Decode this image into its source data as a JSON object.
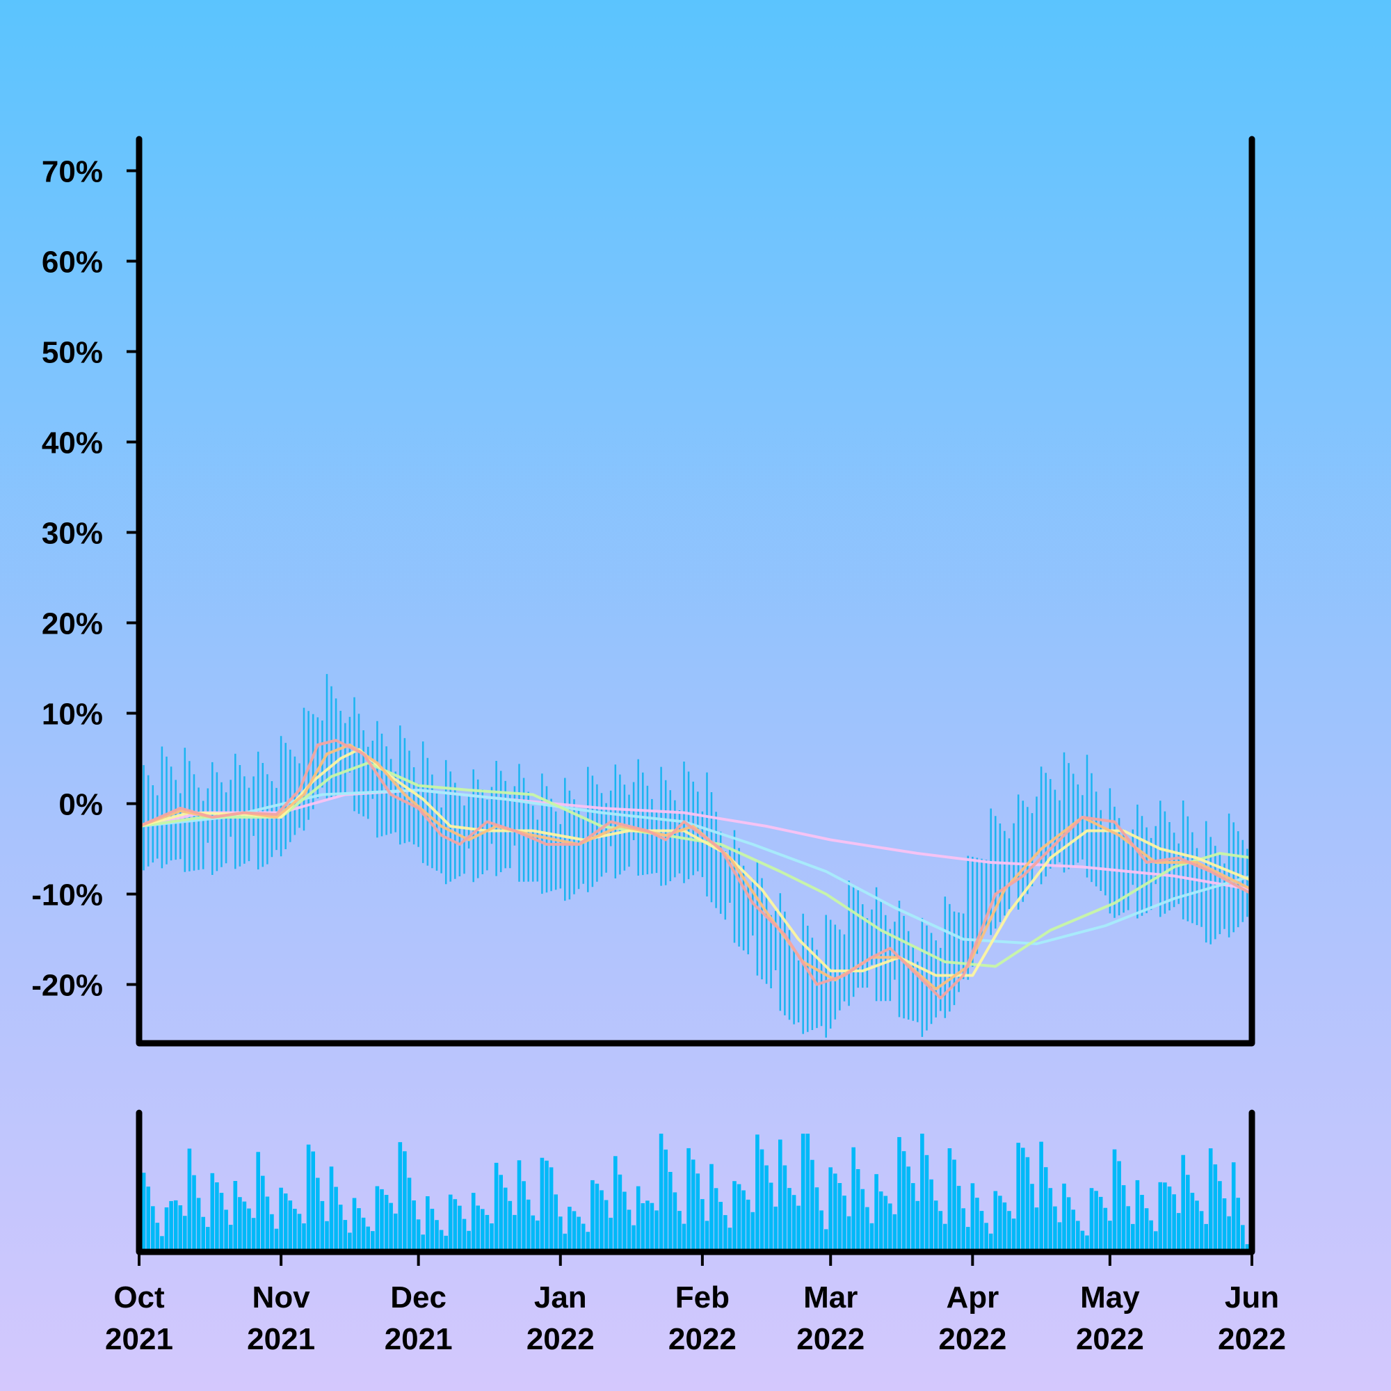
{
  "chart_data": {
    "type": "line",
    "title": "",
    "xlabel": "",
    "ylabel": "",
    "x_range": [
      "2021-10-01",
      "2022-06-01"
    ],
    "ylim": [
      -26.5,
      73.5
    ],
    "y_ticks": [
      70,
      60,
      50,
      40,
      30,
      20,
      10,
      0,
      -10,
      -20
    ],
    "y_tick_labels": [
      "70%",
      "60%",
      "50%",
      "40%",
      "30%",
      "20%",
      "10%",
      "0%",
      "-10%",
      "-20%"
    ],
    "x_ticks": [
      "2021-10-01",
      "2021-11-01",
      "2021-12-01",
      "2022-01-01",
      "2022-02-01",
      "2022-03-01",
      "2022-04-01",
      "2022-05-01",
      "2022-06-01"
    ],
    "x_tick_labels": [
      [
        "Oct",
        "2021"
      ],
      [
        "Nov",
        "2021"
      ],
      [
        "Dec",
        "2021"
      ],
      [
        "Jan",
        "2022"
      ],
      [
        "Feb",
        "2022"
      ],
      [
        "Mar",
        "2022"
      ],
      [
        "Apr",
        "2022"
      ],
      [
        "May",
        "2022"
      ],
      [
        "Jun",
        "2022"
      ]
    ],
    "grid": false,
    "legend": "none",
    "daily_bars": {
      "color": "#1ab4f0",
      "points": [
        [
          "2021-10-01",
          -2.0
        ],
        [
          "2021-10-08",
          -1.0
        ],
        [
          "2021-10-15",
          -2.5
        ],
        [
          "2021-10-22",
          -1.5
        ],
        [
          "2021-10-29",
          -1.5
        ],
        [
          "2021-11-05",
          2.0
        ],
        [
          "2021-11-10",
          6.5
        ],
        [
          "2021-11-15",
          6.0
        ],
        [
          "2021-11-22",
          2.0
        ],
        [
          "2021-11-29",
          1.0
        ],
        [
          "2021-12-06",
          -3.0
        ],
        [
          "2021-12-13",
          -3.0
        ],
        [
          "2021-12-20",
          -2.0
        ],
        [
          "2021-12-27",
          -4.0
        ],
        [
          "2022-01-03",
          -5.0
        ],
        [
          "2022-01-10",
          -3.0
        ],
        [
          "2022-01-17",
          -2.0
        ],
        [
          "2022-01-24",
          -3.5
        ],
        [
          "2022-01-31",
          -2.5
        ],
        [
          "2022-02-07",
          -9.0
        ],
        [
          "2022-02-14",
          -14.0
        ],
        [
          "2022-02-21",
          -19.5
        ],
        [
          "2022-02-28",
          -20.0
        ],
        [
          "2022-03-07",
          -15.0
        ],
        [
          "2022-03-14",
          -17.0
        ],
        [
          "2022-03-21",
          -20.0
        ],
        [
          "2022-03-28",
          -17.0
        ],
        [
          "2022-04-04",
          -9.0
        ],
        [
          "2022-04-11",
          -6.0
        ],
        [
          "2022-04-18",
          -2.0
        ],
        [
          "2022-04-25",
          -1.5
        ],
        [
          "2022-05-02",
          -7.0
        ],
        [
          "2022-05-09",
          -7.0
        ],
        [
          "2022-05-16",
          -6.5
        ],
        [
          "2022-05-23",
          -10.0
        ],
        [
          "2022-06-01",
          -7.5
        ]
      ]
    },
    "series": [
      {
        "color": "#f4a4a0",
        "points": [
          [
            "2021-10-01",
            -2.5
          ],
          [
            "2021-10-10",
            -0.5
          ],
          [
            "2021-10-17",
            -1.5
          ],
          [
            "2021-10-24",
            -1.0
          ],
          [
            "2021-10-31",
            -1.2
          ],
          [
            "2021-11-05",
            1.5
          ],
          [
            "2021-11-09",
            6.5
          ],
          [
            "2021-11-13",
            7.0
          ],
          [
            "2021-11-19",
            5.5
          ],
          [
            "2021-11-25",
            1.0
          ],
          [
            "2021-12-01",
            -0.5
          ],
          [
            "2021-12-06",
            -3.5
          ],
          [
            "2021-12-10",
            -4.5
          ],
          [
            "2021-12-16",
            -2.0
          ],
          [
            "2021-12-22",
            -3.0
          ],
          [
            "2021-12-29",
            -4.5
          ],
          [
            "2022-01-05",
            -4.5
          ],
          [
            "2022-01-12",
            -2.0
          ],
          [
            "2022-01-20",
            -3.0
          ],
          [
            "2022-01-24",
            -4.0
          ],
          [
            "2022-01-28",
            -2.0
          ],
          [
            "2022-02-05",
            -5.0
          ],
          [
            "2022-02-12",
            -11.0
          ],
          [
            "2022-02-19",
            -14.5
          ],
          [
            "2022-02-26",
            -20.0
          ],
          [
            "2022-03-04",
            -19.0
          ],
          [
            "2022-03-10",
            -17.0
          ],
          [
            "2022-03-14",
            -16.0
          ],
          [
            "2022-03-20",
            -19.0
          ],
          [
            "2022-03-25",
            -21.5
          ],
          [
            "2022-03-30",
            -19.0
          ],
          [
            "2022-04-06",
            -10.0
          ],
          [
            "2022-04-12",
            -8.0
          ],
          [
            "2022-04-19",
            -4.5
          ],
          [
            "2022-04-25",
            -1.5
          ],
          [
            "2022-05-02",
            -2.0
          ],
          [
            "2022-05-09",
            -6.5
          ],
          [
            "2022-05-16",
            -6.0
          ],
          [
            "2022-05-23",
            -7.5
          ],
          [
            "2022-06-01",
            -10.0
          ]
        ]
      },
      {
        "color": "#fbc07e",
        "points": [
          [
            "2021-10-01",
            -2.5
          ],
          [
            "2021-10-10",
            -0.8
          ],
          [
            "2021-10-17",
            -1.5
          ],
          [
            "2021-10-24",
            -1.0
          ],
          [
            "2021-10-31",
            -1.5
          ],
          [
            "2021-11-06",
            1.0
          ],
          [
            "2021-11-11",
            5.5
          ],
          [
            "2021-11-16",
            6.5
          ],
          [
            "2021-11-22",
            4.5
          ],
          [
            "2021-11-28",
            1.0
          ],
          [
            "2021-12-06",
            -2.5
          ],
          [
            "2021-12-12",
            -4.0
          ],
          [
            "2021-12-18",
            -2.5
          ],
          [
            "2021-12-26",
            -3.5
          ],
          [
            "2022-01-05",
            -4.5
          ],
          [
            "2022-01-14",
            -2.5
          ],
          [
            "2022-01-24",
            -3.5
          ],
          [
            "2022-01-30",
            -2.5
          ],
          [
            "2022-02-07",
            -6.0
          ],
          [
            "2022-02-15",
            -12.0
          ],
          [
            "2022-02-23",
            -17.5
          ],
          [
            "2022-03-02",
            -19.5
          ],
          [
            "2022-03-10",
            -17.0
          ],
          [
            "2022-03-16",
            -17.0
          ],
          [
            "2022-03-24",
            -20.5
          ],
          [
            "2022-03-31",
            -18.0
          ],
          [
            "2022-04-08",
            -9.5
          ],
          [
            "2022-04-16",
            -5.0
          ],
          [
            "2022-04-25",
            -1.5
          ],
          [
            "2022-05-03",
            -3.5
          ],
          [
            "2022-05-11",
            -6.5
          ],
          [
            "2022-05-20",
            -6.5
          ],
          [
            "2022-06-01",
            -9.5
          ]
        ]
      },
      {
        "color": "#fdf5a0",
        "points": [
          [
            "2021-10-01",
            -2.5
          ],
          [
            "2021-10-12",
            -1.0
          ],
          [
            "2021-10-24",
            -1.2
          ],
          [
            "2021-11-01",
            -1.5
          ],
          [
            "2021-11-08",
            2.5
          ],
          [
            "2021-11-14",
            5.0
          ],
          [
            "2021-11-18",
            6.0
          ],
          [
            "2021-11-25",
            3.0
          ],
          [
            "2021-12-02",
            0.5
          ],
          [
            "2021-12-08",
            -2.5
          ],
          [
            "2021-12-16",
            -3.0
          ],
          [
            "2021-12-26",
            -3.0
          ],
          [
            "2022-01-06",
            -4.0
          ],
          [
            "2022-01-16",
            -3.0
          ],
          [
            "2022-01-28",
            -3.0
          ],
          [
            "2022-02-06",
            -5.5
          ],
          [
            "2022-02-14",
            -9.5
          ],
          [
            "2022-02-22",
            -15.0
          ],
          [
            "2022-03-01",
            -18.5
          ],
          [
            "2022-03-08",
            -18.5
          ],
          [
            "2022-03-16",
            -17.0
          ],
          [
            "2022-03-24",
            -19.0
          ],
          [
            "2022-04-01",
            -19.0
          ],
          [
            "2022-04-09",
            -12.0
          ],
          [
            "2022-04-18",
            -6.0
          ],
          [
            "2022-04-26",
            -3.0
          ],
          [
            "2022-05-04",
            -3.0
          ],
          [
            "2022-05-12",
            -5.0
          ],
          [
            "2022-05-20",
            -6.0
          ],
          [
            "2022-06-01",
            -8.5
          ]
        ]
      },
      {
        "color": "#c8f7a6",
        "points": [
          [
            "2021-10-01",
            -2.5
          ],
          [
            "2021-10-15",
            -1.5
          ],
          [
            "2021-11-01",
            -1.5
          ],
          [
            "2021-11-12",
            3.0
          ],
          [
            "2021-11-20",
            4.5
          ],
          [
            "2021-12-01",
            2.0
          ],
          [
            "2021-12-12",
            1.5
          ],
          [
            "2021-12-26",
            1.0
          ],
          [
            "2022-01-10",
            -2.5
          ],
          [
            "2022-01-24",
            -3.5
          ],
          [
            "2022-02-05",
            -4.5
          ],
          [
            "2022-02-18",
            -7.5
          ],
          [
            "2022-02-28",
            -10.0
          ],
          [
            "2022-03-12",
            -14.0
          ],
          [
            "2022-03-26",
            -17.5
          ],
          [
            "2022-04-06",
            -18.0
          ],
          [
            "2022-04-18",
            -14.0
          ],
          [
            "2022-05-02",
            -11.0
          ],
          [
            "2022-05-15",
            -7.0
          ],
          [
            "2022-05-25",
            -5.5
          ],
          [
            "2022-06-01",
            -6.0
          ]
        ]
      },
      {
        "color": "#a8ecfb",
        "points": [
          [
            "2021-10-01",
            -2.5
          ],
          [
            "2021-10-20",
            -1.5
          ],
          [
            "2021-11-10",
            1.0
          ],
          [
            "2021-12-01",
            1.5
          ],
          [
            "2021-12-20",
            0.5
          ],
          [
            "2022-01-10",
            -1.0
          ],
          [
            "2022-01-28",
            -2.0
          ],
          [
            "2022-02-12",
            -4.5
          ],
          [
            "2022-02-28",
            -7.5
          ],
          [
            "2022-03-15",
            -11.5
          ],
          [
            "2022-03-30",
            -15.0
          ],
          [
            "2022-04-15",
            -15.5
          ],
          [
            "2022-04-30",
            -13.5
          ],
          [
            "2022-05-15",
            -10.5
          ],
          [
            "2022-06-01",
            -8.0
          ]
        ]
      },
      {
        "color": "#f9c3f3",
        "points": [
          [
            "2021-10-01",
            -2.5
          ],
          [
            "2021-10-15",
            -1.0
          ],
          [
            "2021-11-01",
            -1.0
          ],
          [
            "2021-11-15",
            1.0
          ],
          [
            "2021-12-01",
            1.5
          ],
          [
            "2021-12-20",
            0.5
          ],
          [
            "2022-01-10",
            -0.5
          ],
          [
            "2022-01-28",
            -1.0
          ],
          [
            "2022-02-15",
            -2.5
          ],
          [
            "2022-03-01",
            -4.0
          ],
          [
            "2022-03-20",
            -5.5
          ],
          [
            "2022-04-05",
            -6.5
          ],
          [
            "2022-04-25",
            -7.0
          ],
          [
            "2022-05-15",
            -8.0
          ],
          [
            "2022-06-01",
            -9.5
          ]
        ]
      }
    ],
    "volume_bars": {
      "color": "#00b9f8",
      "points": [
        [
          "2021-10-03",
          0.55
        ],
        [
          "2021-10-07",
          0.3
        ],
        [
          "2021-10-11",
          0.75
        ],
        [
          "2021-10-15",
          0.45
        ],
        [
          "2021-10-19",
          0.55
        ],
        [
          "2021-10-23",
          0.4
        ],
        [
          "2021-10-27",
          0.6
        ],
        [
          "2021-10-31",
          0.35
        ],
        [
          "2021-11-04",
          0.45
        ],
        [
          "2021-11-08",
          0.8
        ],
        [
          "2021-11-12",
          0.55
        ],
        [
          "2021-11-16",
          0.35
        ],
        [
          "2021-11-20",
          0.3
        ],
        [
          "2021-11-24",
          0.5
        ],
        [
          "2021-11-28",
          0.7
        ],
        [
          "2021-12-02",
          0.4
        ],
        [
          "2021-12-06",
          0.3
        ],
        [
          "2021-12-10",
          0.45
        ],
        [
          "2021-12-14",
          0.35
        ],
        [
          "2021-12-18",
          0.55
        ],
        [
          "2021-12-22",
          0.6
        ],
        [
          "2021-12-26",
          0.4
        ],
        [
          "2021-12-30",
          0.7
        ],
        [
          "2022-01-03",
          0.3
        ],
        [
          "2022-01-07",
          0.4
        ],
        [
          "2022-01-11",
          0.65
        ],
        [
          "2022-01-15",
          0.55
        ],
        [
          "2022-01-19",
          0.35
        ],
        [
          "2022-01-23",
          0.75
        ],
        [
          "2022-01-27",
          0.6
        ],
        [
          "2022-01-31",
          0.8
        ],
        [
          "2022-02-04",
          0.5
        ],
        [
          "2022-02-08",
          0.45
        ],
        [
          "2022-02-12",
          0.7
        ],
        [
          "2022-02-16",
          0.8
        ],
        [
          "2022-02-20",
          0.55
        ],
        [
          "2022-02-24",
          0.85
        ],
        [
          "2022-02-28",
          0.5
        ],
        [
          "2022-03-04",
          0.75
        ],
        [
          "2022-03-08",
          0.6
        ],
        [
          "2022-03-12",
          0.45
        ],
        [
          "2022-03-16",
          0.7
        ],
        [
          "2022-03-20",
          0.8
        ],
        [
          "2022-03-24",
          0.55
        ],
        [
          "2022-03-28",
          0.75
        ],
        [
          "2022-04-01",
          0.45
        ],
        [
          "2022-04-05",
          0.35
        ],
        [
          "2022-04-09",
          0.5
        ],
        [
          "2022-04-13",
          0.85
        ],
        [
          "2022-04-17",
          0.6
        ],
        [
          "2022-04-21",
          0.4
        ],
        [
          "2022-04-25",
          0.3
        ],
        [
          "2022-04-29",
          0.55
        ],
        [
          "2022-05-03",
          0.7
        ],
        [
          "2022-05-07",
          0.45
        ],
        [
          "2022-05-11",
          0.35
        ],
        [
          "2022-05-15",
          0.65
        ],
        [
          "2022-05-19",
          0.5
        ],
        [
          "2022-05-23",
          0.7
        ],
        [
          "2022-05-27",
          0.75
        ],
        [
          "2022-05-31",
          0.1
        ]
      ]
    }
  }
}
